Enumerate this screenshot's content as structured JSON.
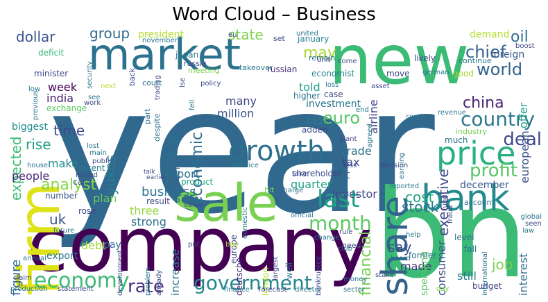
{
  "title": "Word Cloud – Business",
  "palette": {
    "dark_purple": "#440154",
    "purple": "#472c7a",
    "indigo": "#3b528b",
    "blue": "#2c728e",
    "steel": "#31688e",
    "teal": "#21918c",
    "green_teal": "#28ae80",
    "green": "#5ec962",
    "lime": "#addc30",
    "yellow": "#fde725"
  },
  "words": [
    {
      "text": "year",
      "color": "#31688e"
    },
    {
      "text": "company",
      "color": "#440154"
    },
    {
      "text": "bn",
      "color": "#3bbb75"
    },
    {
      "text": "new",
      "color": "#3bbb75"
    },
    {
      "text": "market",
      "color": "#2c728e"
    },
    {
      "text": "firm",
      "color": "#dde318"
    },
    {
      "text": "sale",
      "color": "#7ad151"
    },
    {
      "text": "share",
      "color": "#33638d"
    },
    {
      "text": "bank",
      "color": "#238a8d"
    },
    {
      "text": "price",
      "color": "#2ab07f"
    },
    {
      "text": "growth",
      "color": "#2d708e"
    },
    {
      "text": "economy",
      "color": "#3cbb75"
    },
    {
      "text": "government",
      "color": "#25858e"
    },
    {
      "text": "last",
      "color": "#20a386"
    },
    {
      "text": "month",
      "color": "#5ec962"
    },
    {
      "text": "country",
      "color": "#2a788e"
    },
    {
      "text": "analyst",
      "color": "#86d549"
    },
    {
      "text": "profit",
      "color": "#55c667"
    },
    {
      "text": "rate",
      "color": "#46327e"
    },
    {
      "text": "economic",
      "color": "#2d708e"
    },
    {
      "text": "financial",
      "color": "#75d054"
    },
    {
      "text": "chief",
      "color": "#33638d"
    },
    {
      "text": "world",
      "color": "#32648e"
    },
    {
      "text": "deal",
      "color": "#3e4989"
    },
    {
      "text": "oil",
      "color": "#2e6e8e"
    },
    {
      "text": "china",
      "color": "#482475"
    },
    {
      "text": "executive",
      "color": "#3e4a89"
    },
    {
      "text": "euro",
      "color": "#55c667"
    },
    {
      "text": "state",
      "color": "#7fd34e"
    },
    {
      "text": "may",
      "color": "#a5db36"
    },
    {
      "text": "group",
      "color": "#2f6c8e"
    },
    {
      "text": "dollar",
      "color": "#3b528b"
    },
    {
      "text": "rise",
      "color": "#1fa088"
    },
    {
      "text": "uk",
      "color": "#3b528b"
    },
    {
      "text": "expected",
      "color": "#3bbb75"
    },
    {
      "text": "yukos",
      "color": "#277f8e"
    },
    {
      "text": "time",
      "color": "#3e4989"
    },
    {
      "text": "business",
      "color": "#2c728e"
    },
    {
      "text": "stock",
      "color": "#2a788e"
    },
    {
      "text": "cost",
      "color": "#20a386"
    },
    {
      "text": "job",
      "color": "#7ad151"
    },
    {
      "text": "say",
      "color": "#3b528b"
    },
    {
      "text": "figure",
      "color": "#31688e"
    },
    {
      "text": "first",
      "color": "#2c728e"
    },
    {
      "text": "india",
      "color": "#481c6e"
    },
    {
      "text": "week",
      "color": "#440154"
    },
    {
      "text": "investment",
      "color": "#2a788e"
    },
    {
      "text": "million",
      "color": "#39568c"
    },
    {
      "text": "many",
      "color": "#404688"
    },
    {
      "text": "told",
      "color": "#1f9e89"
    },
    {
      "text": "bid",
      "color": "#2a788e"
    },
    {
      "text": "trade",
      "color": "#2c728e"
    },
    {
      "text": "tax",
      "color": "#3e4989"
    },
    {
      "text": "cut",
      "color": "#33638d"
    },
    {
      "text": "quarter",
      "color": "#20a386"
    },
    {
      "text": "investor",
      "color": "#3e4989"
    },
    {
      "text": "december",
      "color": "#38588c"
    },
    {
      "text": "report",
      "color": "#2c728e"
    },
    {
      "text": "make",
      "color": "#23898e"
    },
    {
      "text": "people",
      "color": "#482878"
    },
    {
      "text": "biggest",
      "color": "#238a8d"
    },
    {
      "text": "plan",
      "color": "#6ccd5a"
    },
    {
      "text": "three",
      "color": "#95d840"
    },
    {
      "text": "strong",
      "color": "#2c728e"
    },
    {
      "text": "increase",
      "color": "#2a788e"
    },
    {
      "text": "consumer",
      "color": "#3b528b"
    },
    {
      "text": "interest",
      "color": "#2c728e"
    },
    {
      "text": "still",
      "color": "#2a788e"
    },
    {
      "text": "made",
      "color": "#46337f"
    },
    {
      "text": "spending",
      "color": "#58c765"
    },
    {
      "text": "debt",
      "color": "#a2da37"
    },
    {
      "text": "pay",
      "color": "#2f6c8e"
    },
    {
      "text": "export",
      "color": "#2a788e"
    },
    {
      "text": "airline",
      "color": "#404688"
    },
    {
      "text": "european",
      "color": "#3b528b"
    },
    {
      "text": "offer",
      "color": "#20a386"
    },
    {
      "text": "demand",
      "color": "#b5de2b"
    },
    {
      "text": "foreign",
      "color": "#38598c"
    },
    {
      "text": "president",
      "color": "#b5de2b"
    },
    {
      "text": "exchange",
      "color": "#5ec962"
    },
    {
      "text": "deficit",
      "color": "#35b779"
    },
    {
      "text": "minister",
      "color": "#3e4989"
    },
    {
      "text": "japan",
      "color": "#287c8e"
    },
    {
      "text": "russian",
      "color": "#472c7a"
    },
    {
      "text": "economist",
      "color": "#25848e"
    },
    {
      "text": "january",
      "color": "#26818e"
    },
    {
      "text": "recent",
      "color": "#2a788e"
    },
    {
      "text": "product",
      "color": "#20a386"
    },
    {
      "text": "result",
      "color": "#404688"
    },
    {
      "text": "according",
      "color": "#31688e"
    },
    {
      "text": "europe",
      "color": "#3e4989"
    },
    {
      "text": "deutsche",
      "color": "#482878"
    },
    {
      "text": "former",
      "color": "#2c728e"
    },
    {
      "text": "level",
      "color": "#2d708e"
    },
    {
      "text": "fall",
      "color": "#2a788e"
    },
    {
      "text": "budget",
      "color": "#404688"
    },
    {
      "text": "london",
      "color": "#b5de2b"
    },
    {
      "text": "car",
      "color": "#3b528b"
    },
    {
      "text": "number",
      "color": "#3b528b"
    },
    {
      "text": "rose",
      "color": "#3e4989"
    },
    {
      "text": "move",
      "color": "#3e4989"
    },
    {
      "text": "likely",
      "color": "#3e4989"
    },
    {
      "text": "good",
      "color": "#a5db36"
    },
    {
      "text": "higher",
      "color": "#2c728e"
    },
    {
      "text": "case",
      "color": "#3e4989"
    },
    {
      "text": "added",
      "color": "#3e4989"
    },
    {
      "text": "shareholder",
      "color": "#3e4989"
    },
    {
      "text": "much",
      "color": "#2c728e"
    },
    {
      "text": "industry",
      "color": "#7ad151"
    },
    {
      "text": "account",
      "color": "#2c728e"
    },
    {
      "text": "continue",
      "color": "#2a788e"
    },
    {
      "text": "remain",
      "color": "#2c728e"
    },
    {
      "text": "court",
      "color": "#2a788e"
    },
    {
      "text": "part",
      "color": "#2c728e"
    },
    {
      "text": "despite",
      "color": "#2c728e"
    },
    {
      "text": "set",
      "color": "#3e4989"
    },
    {
      "text": "russia",
      "color": "#3e4989"
    },
    {
      "text": "meeting",
      "color": "#7ad151"
    },
    {
      "text": "takeover",
      "color": "#2a788e"
    },
    {
      "text": "back",
      "color": "#3e4989"
    },
    {
      "text": "security",
      "color": "#2a788e"
    },
    {
      "text": "november",
      "color": "#2a788e"
    },
    {
      "text": "trading",
      "color": "#3e4989"
    },
    {
      "text": "come",
      "color": "#3e4989"
    },
    {
      "text": "production",
      "color": "#2a788e"
    },
    {
      "text": "statement",
      "color": "#3e4989"
    },
    {
      "text": "finance",
      "color": "#2a788e"
    },
    {
      "text": "forecast",
      "color": "#3e4989"
    },
    {
      "text": "director",
      "color": "#2a788e"
    },
    {
      "text": "sector",
      "color": "#2c728e"
    },
    {
      "text": "stake",
      "color": "#3e4989"
    },
    {
      "text": "money",
      "color": "#2c728e"
    },
    {
      "text": "official",
      "color": "#2c728e"
    },
    {
      "text": "take",
      "color": "#3e4989"
    },
    {
      "text": "hit",
      "color": "#7ad151"
    },
    {
      "text": "charge",
      "color": "#2c728e"
    },
    {
      "text": "value",
      "color": "#3e4989"
    },
    {
      "text": "annual",
      "color": "#2c728e"
    },
    {
      "text": "future",
      "color": "#2a788e"
    },
    {
      "text": "claim",
      "color": "#3e4989"
    },
    {
      "text": "work",
      "color": "#3e4989"
    },
    {
      "text": "low",
      "color": "#2a788e"
    },
    {
      "text": "house",
      "color": "#2c728e"
    },
    {
      "text": "record",
      "color": "#3e4989"
    },
    {
      "text": "public",
      "color": "#3e4989"
    },
    {
      "text": "talk",
      "color": "#3e4989"
    },
    {
      "text": "earlier",
      "color": "#3e4989"
    },
    {
      "text": "service",
      "color": "#2a788e"
    },
    {
      "text": "less",
      "color": "#3e4989"
    },
    {
      "text": "decision",
      "color": "#3e4989"
    },
    {
      "text": "giant",
      "color": "#3e4989"
    },
    {
      "text": "agreed",
      "color": "#2a788e"
    },
    {
      "text": "end",
      "color": "#2a788e"
    },
    {
      "text": "south",
      "color": "#2a788e"
    },
    {
      "text": "boost",
      "color": "#3e4989"
    },
    {
      "text": "global",
      "color": "#2a788e"
    },
    {
      "text": "seen",
      "color": "#3e4989"
    },
    {
      "text": "law",
      "color": "#2a788e"
    },
    {
      "text": "help",
      "color": "#2a788e"
    },
    {
      "text": "board",
      "color": "#2a788e"
    },
    {
      "text": "day",
      "color": "#7ad151"
    },
    {
      "text": "put",
      "color": "#3e4989"
    },
    {
      "text": "buy",
      "color": "#b5de2b"
    },
    {
      "text": "well",
      "color": "#2a788e"
    },
    {
      "text": "largest",
      "color": "#3e4989"
    },
    {
      "text": "bankruptcy",
      "color": "#3e4989"
    },
    {
      "text": "club",
      "color": "#2a788e"
    },
    {
      "text": "need",
      "color": "#3e4989"
    },
    {
      "text": "reported",
      "color": "#2a788e"
    },
    {
      "text": "fund",
      "color": "#3e4989"
    },
    {
      "text": "fraud",
      "color": "#3e4989"
    },
    {
      "text": "international",
      "color": "#2c728e"
    },
    {
      "text": "revenue",
      "color": "#2a788e"
    },
    {
      "text": "earning",
      "color": "#2c728e"
    },
    {
      "text": "asset",
      "color": "#3e4989"
    },
    {
      "text": "loss",
      "color": "#2a788e"
    },
    {
      "text": "unit",
      "color": "#3e4989"
    },
    {
      "text": "united",
      "color": "#2a788e"
    },
    {
      "text": "eu",
      "color": "#3e4989"
    },
    {
      "text": "lse",
      "color": "#3e4989"
    },
    {
      "text": "policy",
      "color": "#3e4989"
    },
    {
      "text": "fell",
      "color": "#2a788e"
    },
    {
      "text": "next",
      "color": "#b5de2b"
    },
    {
      "text": "see",
      "color": "#2a788e"
    },
    {
      "text": "previous",
      "color": "#2a788e"
    },
    {
      "text": "lost",
      "color": "#2a788e"
    },
    {
      "text": "main",
      "color": "#2a788e"
    },
    {
      "text": "german",
      "color": "#2a788e"
    },
    {
      "text": "development",
      "color": "#3e4989"
    },
    {
      "text": "problem",
      "color": "#2a788e"
    },
    {
      "text": "already",
      "color": "#3e4989"
    },
    {
      "text": "domestic",
      "color": "#2a788e"
    },
    {
      "text": "change",
      "color": "#2a788e"
    },
    {
      "text": "rule",
      "color": "#3e4989"
    }
  ]
}
